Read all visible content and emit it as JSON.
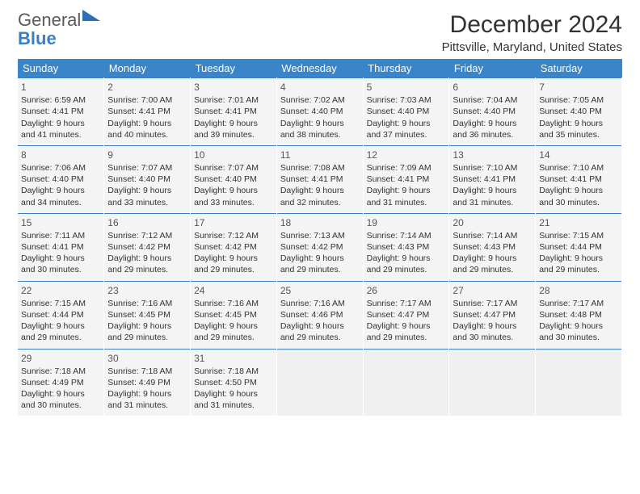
{
  "logo": {
    "line1": "General",
    "line2": "Blue"
  },
  "title": "December 2024",
  "location": "Pittsville, Maryland, United States",
  "colors": {
    "header_bg": "#3a85c9",
    "accent": "#3a7fc4",
    "cell_bg": "#f4f4f4",
    "text": "#333333"
  },
  "day_labels": [
    "Sunday",
    "Monday",
    "Tuesday",
    "Wednesday",
    "Thursday",
    "Friday",
    "Saturday"
  ],
  "weeks": [
    [
      {
        "n": "1",
        "sr": "Sunrise: 6:59 AM",
        "ss": "Sunset: 4:41 PM",
        "d1": "Daylight: 9 hours",
        "d2": "and 41 minutes."
      },
      {
        "n": "2",
        "sr": "Sunrise: 7:00 AM",
        "ss": "Sunset: 4:41 PM",
        "d1": "Daylight: 9 hours",
        "d2": "and 40 minutes."
      },
      {
        "n": "3",
        "sr": "Sunrise: 7:01 AM",
        "ss": "Sunset: 4:41 PM",
        "d1": "Daylight: 9 hours",
        "d2": "and 39 minutes."
      },
      {
        "n": "4",
        "sr": "Sunrise: 7:02 AM",
        "ss": "Sunset: 4:40 PM",
        "d1": "Daylight: 9 hours",
        "d2": "and 38 minutes."
      },
      {
        "n": "5",
        "sr": "Sunrise: 7:03 AM",
        "ss": "Sunset: 4:40 PM",
        "d1": "Daylight: 9 hours",
        "d2": "and 37 minutes."
      },
      {
        "n": "6",
        "sr": "Sunrise: 7:04 AM",
        "ss": "Sunset: 4:40 PM",
        "d1": "Daylight: 9 hours",
        "d2": "and 36 minutes."
      },
      {
        "n": "7",
        "sr": "Sunrise: 7:05 AM",
        "ss": "Sunset: 4:40 PM",
        "d1": "Daylight: 9 hours",
        "d2": "and 35 minutes."
      }
    ],
    [
      {
        "n": "8",
        "sr": "Sunrise: 7:06 AM",
        "ss": "Sunset: 4:40 PM",
        "d1": "Daylight: 9 hours",
        "d2": "and 34 minutes."
      },
      {
        "n": "9",
        "sr": "Sunrise: 7:07 AM",
        "ss": "Sunset: 4:40 PM",
        "d1": "Daylight: 9 hours",
        "d2": "and 33 minutes."
      },
      {
        "n": "10",
        "sr": "Sunrise: 7:07 AM",
        "ss": "Sunset: 4:40 PM",
        "d1": "Daylight: 9 hours",
        "d2": "and 33 minutes."
      },
      {
        "n": "11",
        "sr": "Sunrise: 7:08 AM",
        "ss": "Sunset: 4:41 PM",
        "d1": "Daylight: 9 hours",
        "d2": "and 32 minutes."
      },
      {
        "n": "12",
        "sr": "Sunrise: 7:09 AM",
        "ss": "Sunset: 4:41 PM",
        "d1": "Daylight: 9 hours",
        "d2": "and 31 minutes."
      },
      {
        "n": "13",
        "sr": "Sunrise: 7:10 AM",
        "ss": "Sunset: 4:41 PM",
        "d1": "Daylight: 9 hours",
        "d2": "and 31 minutes."
      },
      {
        "n": "14",
        "sr": "Sunrise: 7:10 AM",
        "ss": "Sunset: 4:41 PM",
        "d1": "Daylight: 9 hours",
        "d2": "and 30 minutes."
      }
    ],
    [
      {
        "n": "15",
        "sr": "Sunrise: 7:11 AM",
        "ss": "Sunset: 4:41 PM",
        "d1": "Daylight: 9 hours",
        "d2": "and 30 minutes."
      },
      {
        "n": "16",
        "sr": "Sunrise: 7:12 AM",
        "ss": "Sunset: 4:42 PM",
        "d1": "Daylight: 9 hours",
        "d2": "and 29 minutes."
      },
      {
        "n": "17",
        "sr": "Sunrise: 7:12 AM",
        "ss": "Sunset: 4:42 PM",
        "d1": "Daylight: 9 hours",
        "d2": "and 29 minutes."
      },
      {
        "n": "18",
        "sr": "Sunrise: 7:13 AM",
        "ss": "Sunset: 4:42 PM",
        "d1": "Daylight: 9 hours",
        "d2": "and 29 minutes."
      },
      {
        "n": "19",
        "sr": "Sunrise: 7:14 AM",
        "ss": "Sunset: 4:43 PM",
        "d1": "Daylight: 9 hours",
        "d2": "and 29 minutes."
      },
      {
        "n": "20",
        "sr": "Sunrise: 7:14 AM",
        "ss": "Sunset: 4:43 PM",
        "d1": "Daylight: 9 hours",
        "d2": "and 29 minutes."
      },
      {
        "n": "21",
        "sr": "Sunrise: 7:15 AM",
        "ss": "Sunset: 4:44 PM",
        "d1": "Daylight: 9 hours",
        "d2": "and 29 minutes."
      }
    ],
    [
      {
        "n": "22",
        "sr": "Sunrise: 7:15 AM",
        "ss": "Sunset: 4:44 PM",
        "d1": "Daylight: 9 hours",
        "d2": "and 29 minutes."
      },
      {
        "n": "23",
        "sr": "Sunrise: 7:16 AM",
        "ss": "Sunset: 4:45 PM",
        "d1": "Daylight: 9 hours",
        "d2": "and 29 minutes."
      },
      {
        "n": "24",
        "sr": "Sunrise: 7:16 AM",
        "ss": "Sunset: 4:45 PM",
        "d1": "Daylight: 9 hours",
        "d2": "and 29 minutes."
      },
      {
        "n": "25",
        "sr": "Sunrise: 7:16 AM",
        "ss": "Sunset: 4:46 PM",
        "d1": "Daylight: 9 hours",
        "d2": "and 29 minutes."
      },
      {
        "n": "26",
        "sr": "Sunrise: 7:17 AM",
        "ss": "Sunset: 4:47 PM",
        "d1": "Daylight: 9 hours",
        "d2": "and 29 minutes."
      },
      {
        "n": "27",
        "sr": "Sunrise: 7:17 AM",
        "ss": "Sunset: 4:47 PM",
        "d1": "Daylight: 9 hours",
        "d2": "and 30 minutes."
      },
      {
        "n": "28",
        "sr": "Sunrise: 7:17 AM",
        "ss": "Sunset: 4:48 PM",
        "d1": "Daylight: 9 hours",
        "d2": "and 30 minutes."
      }
    ],
    [
      {
        "n": "29",
        "sr": "Sunrise: 7:18 AM",
        "ss": "Sunset: 4:49 PM",
        "d1": "Daylight: 9 hours",
        "d2": "and 30 minutes."
      },
      {
        "n": "30",
        "sr": "Sunrise: 7:18 AM",
        "ss": "Sunset: 4:49 PM",
        "d1": "Daylight: 9 hours",
        "d2": "and 31 minutes."
      },
      {
        "n": "31",
        "sr": "Sunrise: 7:18 AM",
        "ss": "Sunset: 4:50 PM",
        "d1": "Daylight: 9 hours",
        "d2": "and 31 minutes."
      },
      null,
      null,
      null,
      null
    ]
  ]
}
